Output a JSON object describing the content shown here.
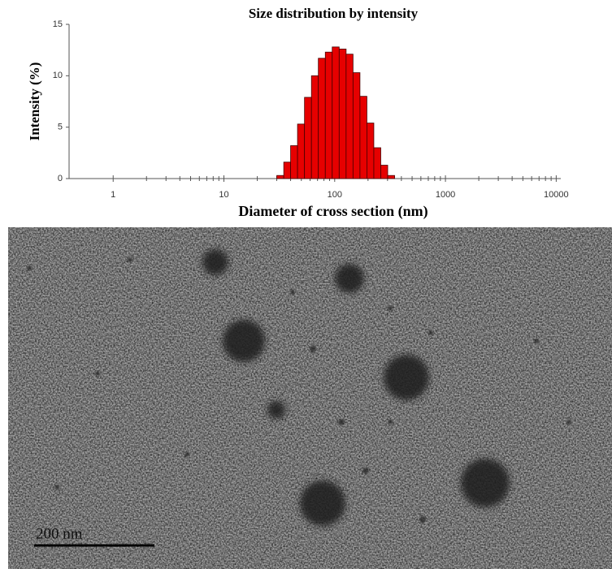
{
  "chart_data": {
    "type": "histogram",
    "title": "Size distribution by intensity",
    "ylabel": "Intensity (%)",
    "xlabel": "Diameter of cross section (nm)",
    "bins": [
      30,
      34.7,
      40.0,
      46.2,
      53.4,
      61.7,
      71.2,
      82.3,
      95.0,
      109.8,
      126.8,
      146.4,
      169.1,
      195.3,
      225.6,
      260.6,
      301.0,
      347.6
    ],
    "values": [
      0.3,
      1.6,
      3.2,
      5.3,
      7.9,
      10.0,
      11.7,
      12.3,
      12.8,
      12.6,
      12.1,
      10.3,
      8.0,
      5.4,
      3.0,
      1.3,
      0.3
    ],
    "color": "#e60000",
    "xscale": "log",
    "xlim": [
      0.4,
      11000
    ],
    "xticks": [
      1,
      10,
      100,
      1000,
      10000
    ],
    "ylim": [
      0,
      15
    ],
    "yticks": [
      0,
      5,
      10,
      15
    ]
  },
  "image": {
    "scale_bar_label": "200 nm"
  }
}
